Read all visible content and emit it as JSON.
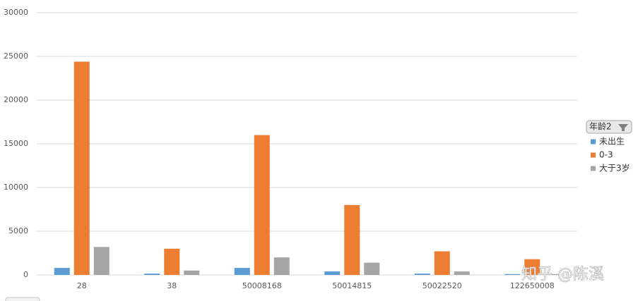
{
  "chart_data": {
    "type": "bar",
    "categories": [
      "28",
      "38",
      "50008168",
      "50014815",
      "50022520",
      "122650008"
    ],
    "series": [
      {
        "name": "未出生",
        "color": "#5b9bd5",
        "values": [
          800,
          150,
          800,
          400,
          150,
          100
        ]
      },
      {
        "name": "0-3",
        "color": "#ed7d31",
        "values": [
          24400,
          3000,
          16000,
          8000,
          2700,
          1800
        ]
      },
      {
        "name": "大于3岁",
        "color": "#a5a5a5",
        "values": [
          3200,
          500,
          2000,
          1400,
          400,
          100
        ]
      }
    ],
    "ylim": [
      0,
      30000
    ],
    "yticks": [
      0,
      5000,
      10000,
      15000,
      20000,
      25000,
      30000
    ],
    "grid": true,
    "legend_title": "年龄2",
    "legend_position": "right",
    "watermark": "知乎 @陈溪"
  }
}
